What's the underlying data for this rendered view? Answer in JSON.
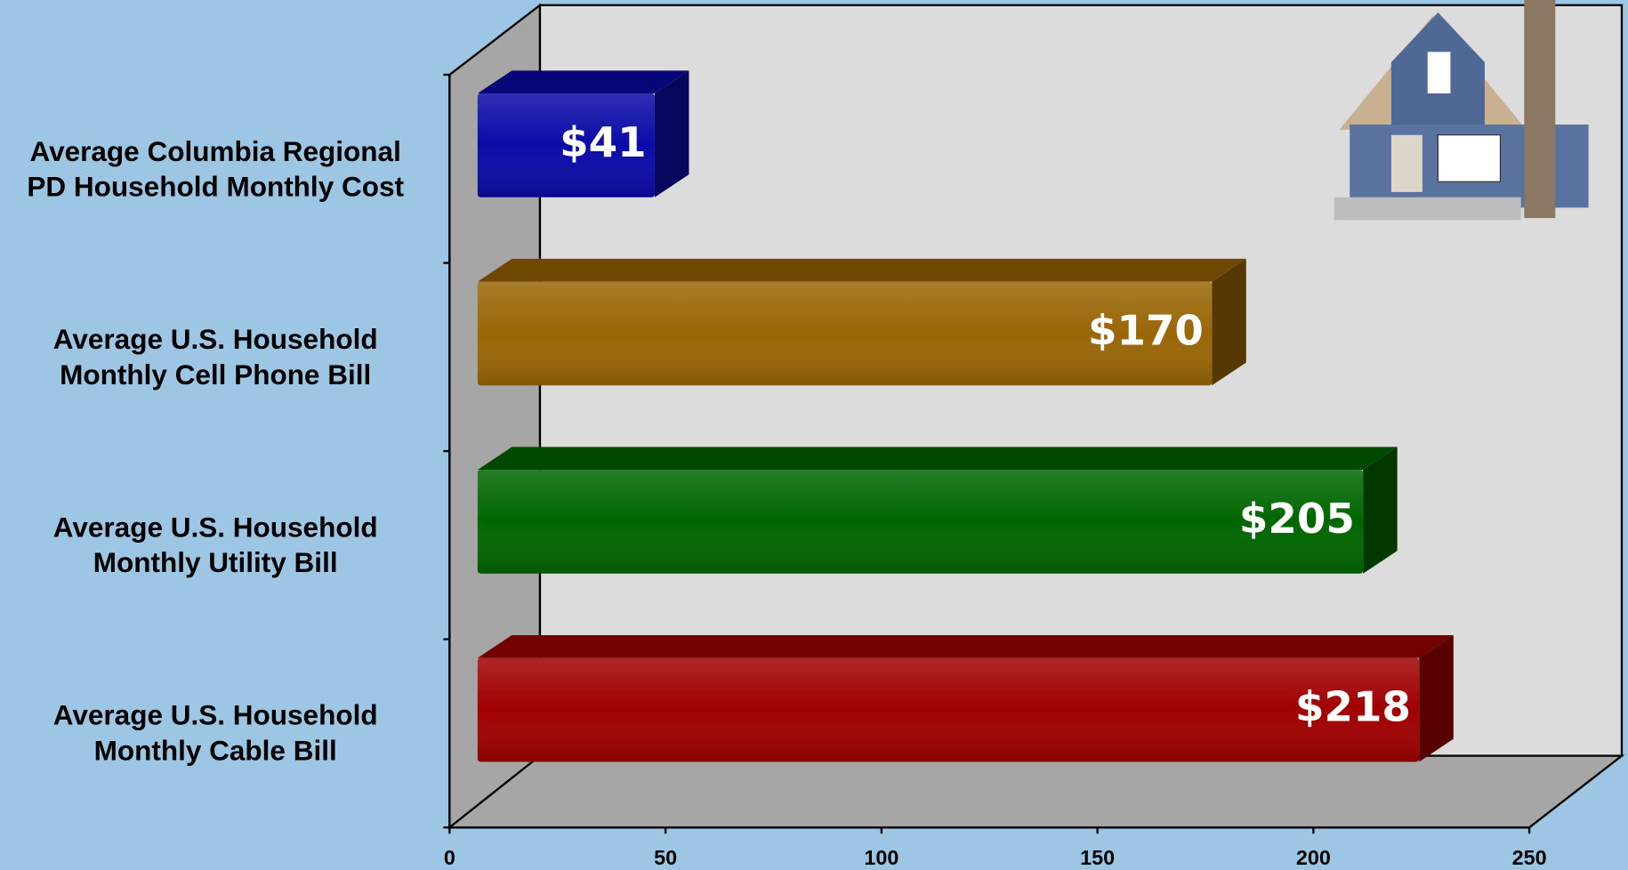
{
  "chart_data": {
    "type": "bar3d",
    "orientation": "horizontal",
    "categories": [
      "Average Columbia Regional\nPD Household Monthly Cost",
      "Average U.S. Household\nMonthly Cell Phone Bill",
      "Average U.S. Household\nMonthly Utility Bill",
      "Average U.S. Household\nMonthly Cable Bill"
    ],
    "values": [
      41,
      170,
      205,
      218
    ],
    "value_labels": [
      "$41",
      "$170",
      "$205",
      "$218"
    ],
    "colors": [
      "#0a0aa8",
      "#9a6606",
      "#006600",
      "#a00000"
    ],
    "xlim": [
      0,
      250
    ],
    "xticks": [
      0,
      50,
      100,
      150,
      200,
      250
    ]
  }
}
